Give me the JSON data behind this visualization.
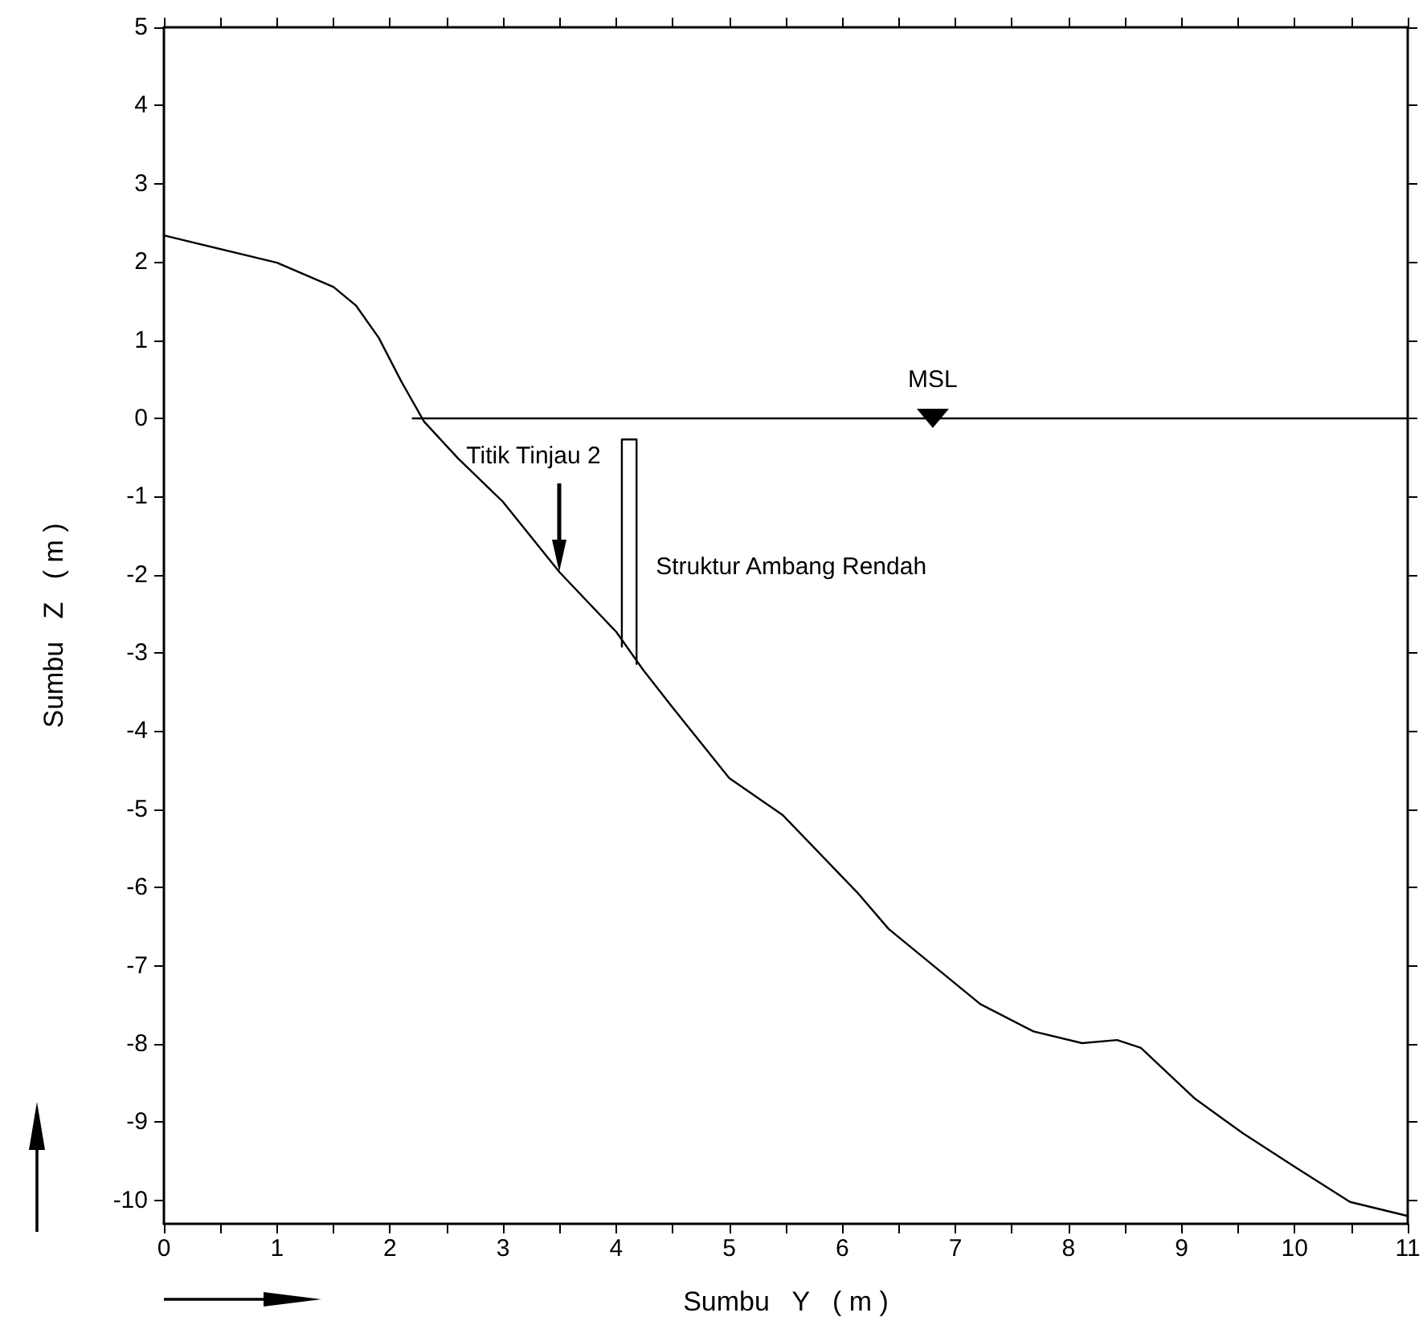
{
  "chart_data": {
    "type": "line",
    "xlabel": "Sumbu   Y   ( m )",
    "ylabel": "Sumbu   Z   ( m )",
    "xlim": [
      0,
      11
    ],
    "ylim": [
      -10.3,
      5
    ],
    "xticks": [
      0,
      {
        "value": 0.5,
        "label": null
      },
      1,
      {
        "value": 1.5,
        "label": null
      },
      2,
      {
        "value": 2.5,
        "label": null
      },
      3,
      {
        "value": 3.5,
        "label": null
      },
      4,
      {
        "value": 4.5,
        "label": null
      },
      5,
      {
        "value": 5.5,
        "label": null
      },
      6,
      {
        "value": 6.5,
        "label": null
      },
      7,
      {
        "value": 7.5,
        "label": null
      },
      8,
      {
        "value": 8.5,
        "label": null
      },
      9,
      {
        "value": 9.5,
        "label": null
      },
      10,
      {
        "value": 10.5,
        "label": null
      },
      11
    ],
    "yticks": [
      -10,
      -9,
      -8,
      -7,
      -6,
      -5,
      -4,
      -3,
      -2,
      -1,
      0,
      1,
      2,
      3,
      4,
      5
    ],
    "grid": false,
    "marker": "none",
    "line_style": "solid",
    "series": [
      {
        "color": "#000000",
        "x": [
          0,
          1,
          1.5,
          1.7,
          1.9,
          2.1,
          2.3,
          2.6,
          3,
          3.5,
          4,
          4.24,
          4.5,
          5,
          5.47,
          6.13,
          6.41,
          7.22,
          7.69,
          8.12,
          8.43,
          8.64,
          9.11,
          9.54,
          10.02,
          10.49,
          11
        ],
        "values": [
          2.34,
          1.99,
          1.68,
          1.44,
          1.03,
          0.47,
          -0.04,
          -0.51,
          -1.07,
          -1.97,
          -2.73,
          -3.22,
          -3.7,
          -4.6,
          -5.07,
          -6.06,
          -6.53,
          -7.49,
          -7.84,
          -7.99,
          -7.95,
          -8.05,
          -8.69,
          -9.14,
          -9.59,
          -10.02,
          -10.2
        ]
      },
      {
        "color": "#000000",
        "x": [
          2.2,
          11
        ],
        "values": [
          0,
          0
        ]
      },
      {
        "color": "#000000",
        "x": [
          4.05,
          4.05,
          4.18,
          4.18
        ],
        "values": [
          -2.92,
          -0.27,
          -0.27,
          -3.14
        ]
      }
    ],
    "annotations": [
      {
        "text": "MSL",
        "x": 6.8,
        "y": 0
      },
      "Titik Tinjau 2",
      {
        "text": "Struktur Ambang Rendah",
        "x": 4.18,
        "y": -1.9
      }
    ]
  }
}
